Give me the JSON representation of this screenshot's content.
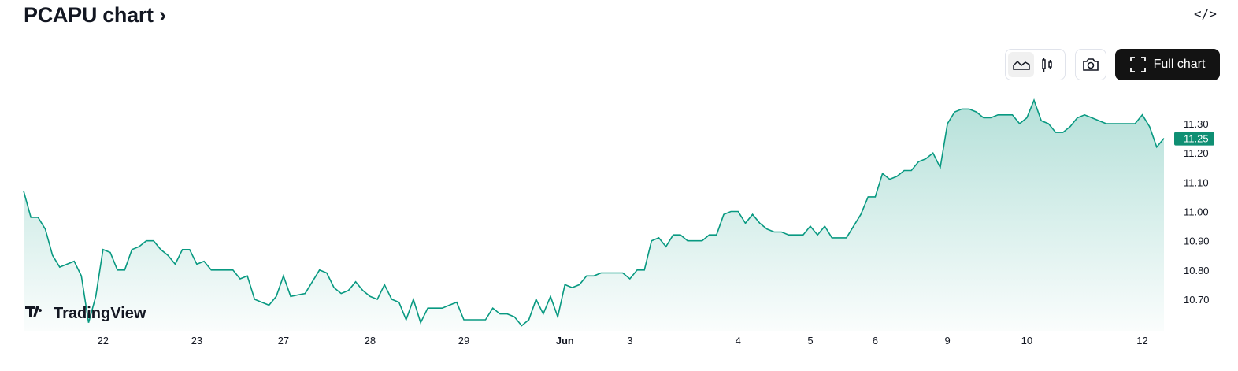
{
  "header": {
    "title": "PCAPU chart ›",
    "embed_icon": "code-icon"
  },
  "toolbar": {
    "line_style": "area-chart-icon",
    "candle_style": "candlestick-icon",
    "snapshot": "camera-icon",
    "full_chart_label": "Full chart",
    "full_chart_icon": "fullscreen-icon"
  },
  "logo": "TradingView",
  "colors": {
    "line": "#089981",
    "badge": "#0f8f73"
  },
  "chart_data": {
    "type": "area",
    "title": "",
    "xlabel": "",
    "ylabel": "",
    "ylim": [
      10.6,
      11.4
    ],
    "y_ticks": [
      "10.70",
      "10.80",
      "10.90",
      "11.00",
      "11.10",
      "11.20",
      "11.30"
    ],
    "last_price": "11.25",
    "x_ticks": [
      {
        "label": "22",
        "index": 11
      },
      {
        "label": "23",
        "index": 24
      },
      {
        "label": "27",
        "index": 36
      },
      {
        "label": "28",
        "index": 48
      },
      {
        "label": "29",
        "index": 61
      },
      {
        "label": "Jun",
        "index": 75,
        "bold": true
      },
      {
        "label": "3",
        "index": 84
      },
      {
        "label": "4",
        "index": 99
      },
      {
        "label": "5",
        "index": 109
      },
      {
        "label": "6",
        "index": 118
      },
      {
        "label": "9",
        "index": 128
      },
      {
        "label": "10",
        "index": 139
      },
      {
        "label": "12",
        "index": 155
      }
    ],
    "values": [
      11.07,
      10.98,
      10.98,
      10.94,
      10.85,
      10.81,
      10.82,
      10.83,
      10.78,
      10.62,
      10.71,
      10.87,
      10.86,
      10.8,
      10.8,
      10.87,
      10.88,
      10.9,
      10.9,
      10.87,
      10.85,
      10.82,
      10.87,
      10.87,
      10.82,
      10.83,
      10.8,
      10.8,
      10.8,
      10.8,
      10.77,
      10.78,
      10.7,
      10.69,
      10.68,
      10.71,
      10.78,
      10.71,
      10.715,
      10.72,
      10.76,
      10.8,
      10.79,
      10.74,
      10.72,
      10.73,
      10.76,
      10.73,
      10.71,
      10.7,
      10.75,
      10.7,
      10.69,
      10.63,
      10.7,
      10.62,
      10.67,
      10.67,
      10.67,
      10.68,
      10.69,
      10.63,
      10.63,
      10.63,
      10.63,
      10.67,
      10.65,
      10.65,
      10.64,
      10.61,
      10.63,
      10.7,
      10.65,
      10.71,
      10.64,
      10.75,
      10.74,
      10.75,
      10.78,
      10.78,
      10.79,
      10.79,
      10.79,
      10.79,
      10.77,
      10.8,
      10.8,
      10.9,
      10.91,
      10.88,
      10.92,
      10.92,
      10.9,
      10.9,
      10.9,
      10.92,
      10.92,
      10.99,
      11.0,
      11.0,
      10.96,
      10.99,
      10.96,
      10.94,
      10.93,
      10.93,
      10.92,
      10.92,
      10.92,
      10.95,
      10.92,
      10.95,
      10.91,
      10.91,
      10.91,
      10.95,
      10.99,
      11.05,
      11.05,
      11.13,
      11.11,
      11.12,
      11.14,
      11.14,
      11.17,
      11.18,
      11.2,
      11.15,
      11.3,
      11.34,
      11.35,
      11.35,
      11.34,
      11.32,
      11.32,
      11.33,
      11.33,
      11.33,
      11.3,
      11.32,
      11.38,
      11.31,
      11.3,
      11.27,
      11.27,
      11.29,
      11.32,
      11.33,
      11.32,
      11.31,
      11.3,
      11.3,
      11.3,
      11.3,
      11.3,
      11.33,
      11.29,
      11.22,
      11.25
    ]
  }
}
